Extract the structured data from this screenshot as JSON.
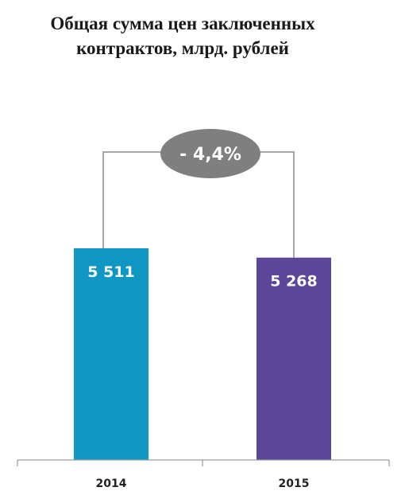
{
  "chart_data": {
    "type": "bar",
    "title": "Общая сумма цен заключенных\nконтрактов, млрд. рублей",
    "categories": [
      "2014",
      "2015"
    ],
    "values": [
      5511,
      5268
    ],
    "value_labels": [
      "5 511",
      "5 268"
    ],
    "colors": [
      "#0f97c4",
      "#5b4699"
    ],
    "change_label": "- 4,4%",
    "change_badge_color": "#7f7f7f",
    "connector_color": "#8c8c8c",
    "axis_color": "#9a9a9a",
    "ylim": [
      0,
      6000
    ],
    "grid": false,
    "legend": "none"
  }
}
